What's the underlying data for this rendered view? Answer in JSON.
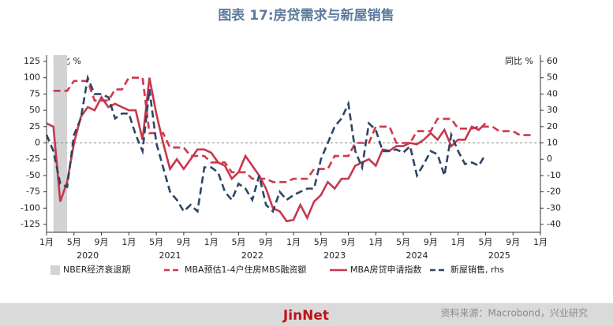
{
  "chart_data": {
    "type": "line",
    "title": "图表 17:房贷需求与新屋销售",
    "y_label": "同比 %",
    "y2_label": "同比 %",
    "x": [
      "2020-01",
      "2020-02",
      "2020-03",
      "2020-04",
      "2020-05",
      "2020-06",
      "2020-07",
      "2020-08",
      "2020-09",
      "2020-10",
      "2020-11",
      "2020-12",
      "2021-01",
      "2021-02",
      "2021-03",
      "2021-04",
      "2021-05",
      "2021-06",
      "2021-07",
      "2021-08",
      "2021-09",
      "2021-10",
      "2021-11",
      "2021-12",
      "2022-01",
      "2022-02",
      "2022-03",
      "2022-04",
      "2022-05",
      "2022-06",
      "2022-07",
      "2022-08",
      "2022-09",
      "2022-10",
      "2022-11",
      "2022-12",
      "2023-01",
      "2023-02",
      "2023-03",
      "2023-04",
      "2023-05",
      "2023-06",
      "2023-07",
      "2023-08",
      "2023-09",
      "2023-10",
      "2023-11",
      "2023-12",
      "2024-01",
      "2024-02",
      "2024-03",
      "2024-04",
      "2024-05",
      "2024-06",
      "2024-07",
      "2024-08",
      "2024-09",
      "2024-10",
      "2024-11",
      "2024-12",
      "2025-01",
      "2025-02",
      "2025-03",
      "2025-04",
      "2025-05",
      "2025-06",
      "2025-07",
      "2025-08",
      "2025-09",
      "2025-10",
      "2025-11",
      "2025-12"
    ],
    "xlim": [
      "2020-01",
      "2026-01"
    ],
    "xticks": [
      {
        "value": "2020-01",
        "label": "1月"
      },
      {
        "value": "2020-05",
        "label": "5月"
      },
      {
        "value": "2020-09",
        "label": "9月"
      },
      {
        "value": "2021-01",
        "label": "1月"
      },
      {
        "value": "2021-05",
        "label": "5月"
      },
      {
        "value": "2021-09",
        "label": "9月"
      },
      {
        "value": "2022-01",
        "label": "1月"
      },
      {
        "value": "2022-05",
        "label": "5月"
      },
      {
        "value": "2022-09",
        "label": "9月"
      },
      {
        "value": "2023-01",
        "label": "1月"
      },
      {
        "value": "2023-05",
        "label": "5月"
      },
      {
        "value": "2023-09",
        "label": "9月"
      },
      {
        "value": "2024-01",
        "label": "1月"
      },
      {
        "value": "2024-05",
        "label": "5月"
      },
      {
        "value": "2024-09",
        "label": "9月"
      },
      {
        "value": "2025-01",
        "label": "1月"
      },
      {
        "value": "2025-05",
        "label": "5月"
      },
      {
        "value": "2025-09",
        "label": "9月"
      },
      {
        "value": "2026-01",
        "label": "1月"
      }
    ],
    "year_labels": [
      {
        "value": "2020-07",
        "label": "2020"
      },
      {
        "value": "2021-07",
        "label": "2021"
      },
      {
        "value": "2022-07",
        "label": "2022"
      },
      {
        "value": "2023-07",
        "label": "2023"
      },
      {
        "value": "2024-07",
        "label": "2024"
      },
      {
        "value": "2025-07",
        "label": "2025"
      }
    ],
    "ylim": [
      -125,
      125
    ],
    "yticks": [
      125,
      100,
      75,
      50,
      25,
      0,
      -25,
      -50,
      -75,
      -100,
      -125
    ],
    "y2lim": [
      -40,
      60
    ],
    "y2ticks": [
      60,
      50,
      40,
      30,
      20,
      10,
      0,
      -10,
      -20,
      -30,
      -40
    ],
    "zero_line": true,
    "recession": {
      "name": "NBER经济衰退期",
      "start": "2020-02",
      "end": "2020-04",
      "color": "#d3d3d3"
    },
    "series": [
      {
        "name": "MBA预估1-4户住房MBS融资额",
        "color": "#d0374f",
        "dash": true,
        "values": [
          null,
          80,
          80,
          80,
          95,
          95,
          95,
          65,
          65,
          65,
          82,
          82,
          100,
          100,
          100,
          15,
          15,
          15,
          -7,
          -7,
          -7,
          -20,
          -20,
          -20,
          -30,
          -30,
          -30,
          -45,
          -45,
          -45,
          -55,
          -55,
          -55,
          -60,
          -60,
          -60,
          -55,
          -55,
          -55,
          -40,
          -40,
          -40,
          -20,
          -20,
          -20,
          0,
          0,
          0,
          25,
          25,
          25,
          0,
          0,
          0,
          18,
          18,
          18,
          37,
          37,
          37,
          22,
          22,
          22,
          25,
          25,
          25,
          18,
          18,
          18,
          12,
          12,
          12
        ]
      },
      {
        "name": "MBA房贷申请指数",
        "color": "#c8374c",
        "dash": false,
        "values": [
          30,
          25,
          -90,
          -60,
          0,
          40,
          55,
          50,
          70,
          55,
          60,
          55,
          50,
          50,
          5,
          100,
          45,
          0,
          -40,
          -25,
          -40,
          -25,
          -10,
          -10,
          -15,
          -30,
          -35,
          -55,
          -45,
          -20,
          -35,
          -50,
          -70,
          -100,
          -105,
          -120,
          -118,
          -95,
          -115,
          -90,
          -80,
          -60,
          -70,
          -55,
          -55,
          -35,
          -30,
          -25,
          -35,
          -10,
          -12,
          -5,
          -5,
          0,
          -2,
          5,
          15,
          5,
          20,
          -5,
          5,
          5,
          25,
          20,
          30,
          null,
          null,
          null,
          null,
          null,
          null,
          null
        ]
      },
      {
        "name": "新屋销售, rhs",
        "color": "#2e4566",
        "dash": true,
        "axis": "y2",
        "values": [
          15,
          5,
          -15,
          -17,
          15,
          25,
          50,
          40,
          40,
          38,
          25,
          28,
          28,
          15,
          5,
          43,
          10,
          -5,
          -20,
          -25,
          -32,
          -28,
          -32,
          -5,
          -5,
          -8,
          -20,
          -25,
          -15,
          -18,
          -25,
          -10,
          -28,
          -32,
          -20,
          -25,
          -22,
          -20,
          -18,
          -18,
          0,
          10,
          20,
          25,
          34,
          5,
          -5,
          22,
          18,
          5,
          5,
          6,
          4,
          8,
          -10,
          -3,
          5,
          3,
          -10,
          15,
          5,
          -3,
          -2,
          -4,
          3,
          null,
          null,
          null,
          null,
          null,
          null,
          null
        ]
      }
    ]
  },
  "footer": {
    "brand": "JinNet",
    "source": "资料来源：Macrobond，兴业研究"
  }
}
